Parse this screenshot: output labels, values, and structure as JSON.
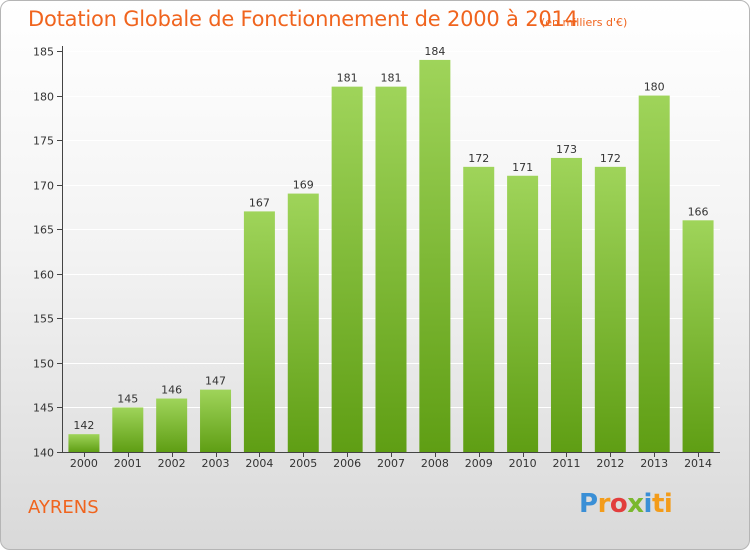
{
  "header": {
    "title": "Dotation Globale de Fonctionnement de 2000 à 2014",
    "unit": "(en milliers d'€)"
  },
  "footer": {
    "commune": "AYRENS",
    "logo_text": "Proxiti"
  },
  "colors": {
    "title": "#f0641e",
    "bar_top": "#9fd45a",
    "bar_bottom": "#5f9e14",
    "axis": "#444444",
    "grid": "#ffffff"
  },
  "chart_data": {
    "type": "bar",
    "title": "Dotation Globale de Fonctionnement de 2000 à 2014",
    "subtitle": "(en milliers d'€)",
    "xlabel": "",
    "ylabel": "",
    "categories": [
      "2000",
      "2001",
      "2002",
      "2003",
      "2004",
      "2005",
      "2006",
      "2007",
      "2008",
      "2009",
      "2010",
      "2011",
      "2012",
      "2013",
      "2014"
    ],
    "values": [
      142,
      145,
      146,
      147,
      167,
      169,
      181,
      181,
      184,
      172,
      171,
      173,
      172,
      180,
      166
    ],
    "data_labels": [
      "142",
      "145",
      "146",
      "147",
      "167",
      "169",
      "181",
      "181",
      "184",
      "172",
      "171",
      "173",
      "172",
      "180",
      "166"
    ],
    "ylim": [
      140,
      185
    ],
    "yticks": [
      140,
      145,
      150,
      155,
      160,
      165,
      170,
      175,
      180,
      185
    ],
    "grid": true,
    "legend": "none"
  }
}
